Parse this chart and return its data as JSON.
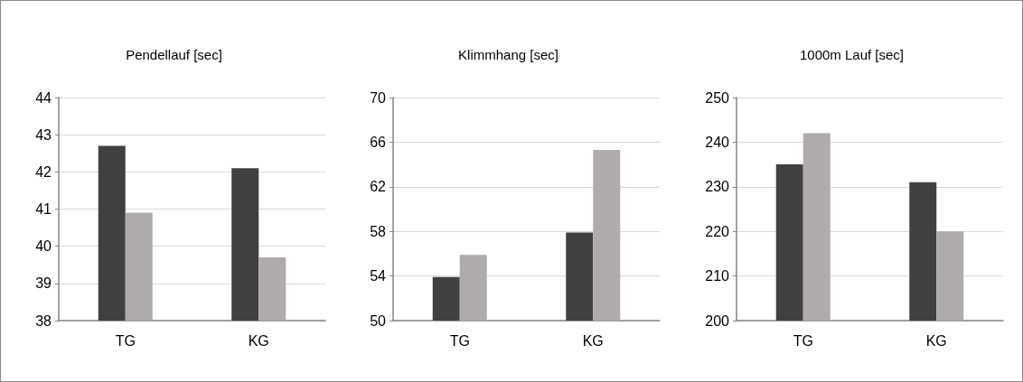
{
  "chart_data": [
    {
      "type": "bar",
      "title": "Pendellauf [sec]",
      "categories": [
        "TG",
        "KG"
      ],
      "series": [
        {
          "color": "#404040",
          "values": [
            42.7,
            42.1
          ]
        },
        {
          "color": "#afabab",
          "values": [
            40.9,
            39.7
          ]
        }
      ],
      "ylim": [
        38,
        44
      ],
      "yticks": [
        38,
        39,
        40,
        41,
        42,
        43,
        44
      ],
      "grid": "y"
    },
    {
      "type": "bar",
      "title": "Klimmhang [sec]",
      "categories": [
        "TG",
        "KG"
      ],
      "series": [
        {
          "color": "#404040",
          "values": [
            53.9,
            57.9
          ]
        },
        {
          "color": "#afabab",
          "values": [
            55.9,
            65.3
          ]
        }
      ],
      "ylim": [
        50,
        70
      ],
      "yticks": [
        50,
        54,
        58,
        62,
        66,
        70
      ],
      "grid": "y"
    },
    {
      "type": "bar",
      "title": "1000m Lauf [sec]",
      "categories": [
        "TG",
        "KG"
      ],
      "series": [
        {
          "color": "#404040",
          "values": [
            235,
            231
          ]
        },
        {
          "color": "#afabab",
          "values": [
            242,
            220
          ]
        }
      ],
      "ylim": [
        200,
        250
      ],
      "yticks": [
        200,
        210,
        220,
        230,
        240,
        250
      ],
      "grid": "y"
    }
  ]
}
